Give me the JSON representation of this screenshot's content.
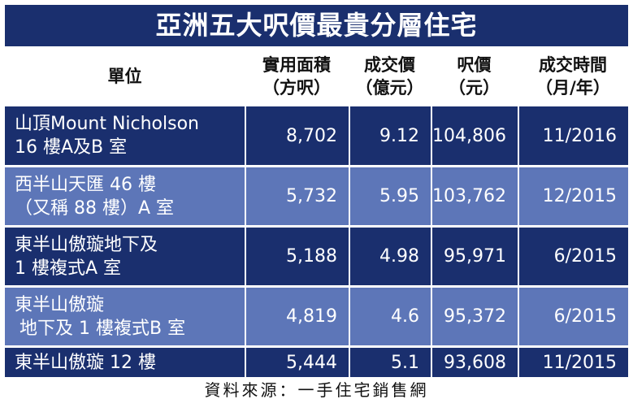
{
  "title": "亞洲五大呎價最貴分層住宅",
  "chart_data": {
    "type": "table",
    "columns": [
      {
        "lines": [
          "單位"
        ]
      },
      {
        "lines": [
          "實用面積",
          "（方呎）"
        ]
      },
      {
        "lines": [
          "成交價",
          "（億元）"
        ]
      },
      {
        "lines": [
          "呎價",
          "（元）"
        ]
      },
      {
        "lines": [
          "成交時間",
          "（月/年）"
        ]
      }
    ],
    "rows": [
      {
        "name": [
          "山頂Mount Nicholson",
          "16 樓A及B 室"
        ],
        "area": "8,702",
        "price": "9.12",
        "psf": "104,806",
        "date": "11/2016"
      },
      {
        "name": [
          "西半山天匯 46 樓",
          "（又稱 88 樓）A 室"
        ],
        "area": "5,732",
        "price": "5.95",
        "psf": "103,762",
        "date": "12/2015"
      },
      {
        "name": [
          "東半山傲璇地下及",
          "1 樓複式A 室"
        ],
        "area": "5,188",
        "price": "4.98",
        "psf": "95,971",
        "date": "6/2015"
      },
      {
        "name": [
          "東半山傲璇",
          "地下及 1 樓複式B 室"
        ],
        "area": "4,819",
        "price": "4.6",
        "psf": "95,372",
        "date": "6/2015"
      },
      {
        "name": [
          "東半山傲璇 12 樓"
        ],
        "area": "5,444",
        "price": "5.1",
        "psf": "93,608",
        "date": "11/2015"
      }
    ]
  },
  "source": "資料來源：一手住宅銷售網",
  "colors": {
    "dark_row": "#1a2f6e",
    "light_row": "#5d76b8"
  }
}
